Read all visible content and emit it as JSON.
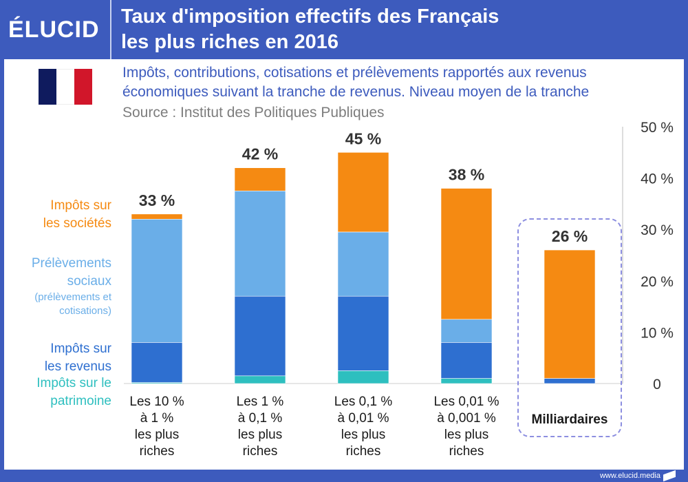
{
  "header": {
    "logo": "ÉLUCID",
    "title": "Taux d'imposition effectifs des Français\nles plus riches en 2016"
  },
  "subtitle": "Impôts, contributions, cotisations et prélèvements rapportés aux revenus\néconomiques suivant la tranche de revenus. Niveau moyen de la tranche",
  "source": "Source : Institut des Politiques Publiques",
  "legend": {
    "corp": [
      "Impôts sur",
      "les sociétés"
    ],
    "social": [
      "Prélèvements",
      "sociaux"
    ],
    "social_note": [
      "(prélèvements et",
      "cotisations)"
    ],
    "income": [
      "Impôts sur",
      "les revenus"
    ],
    "wealth": [
      "Impôts sur le",
      "patrimoine"
    ]
  },
  "footer": "www.elucid.media",
  "colors": {
    "corp": "#f58a12",
    "social": "#6aaee8",
    "income": "#2e6fd0",
    "wealth": "#2ebfbf",
    "brand": "#3d5bbd"
  },
  "chart_data": {
    "type": "bar",
    "stacked": true,
    "categories": [
      "Les 10 %\nà 1 %\nles plus\nriches",
      "Les 1 %\nà 0,1 %\nles plus\nriches",
      "Les 0,1 %\nà 0,01 %\nles plus\nriches",
      "Les 0,01 %\nà 0,001 %\nles plus\nriches",
      "Milliardaires"
    ],
    "series": [
      {
        "name": "Impôts sur le patrimoine",
        "key": "wealth",
        "values": [
          0.2,
          1.5,
          2.5,
          1.0,
          0.0
        ]
      },
      {
        "name": "Impôts sur les revenus",
        "key": "income",
        "values": [
          7.8,
          15.5,
          14.5,
          7.0,
          1.0
        ]
      },
      {
        "name": "Prélèvements sociaux (prélèvements et cotisations)",
        "key": "social",
        "values": [
          24.0,
          20.5,
          12.5,
          4.5,
          0.0
        ]
      },
      {
        "name": "Impôts sur les sociétés",
        "key": "corp",
        "values": [
          1.0,
          4.5,
          15.5,
          25.5,
          25.0
        ]
      }
    ],
    "totals_labels": [
      "33 %",
      "42 %",
      "45 %",
      "38 %",
      "26 %"
    ],
    "ylim": [
      0,
      50
    ],
    "yticks": [
      "0",
      "10 %",
      "20 %",
      "30 %",
      "40 %",
      "50 %"
    ],
    "xlabel": "",
    "ylabel": "",
    "highlighted_category": "Milliardaires"
  }
}
